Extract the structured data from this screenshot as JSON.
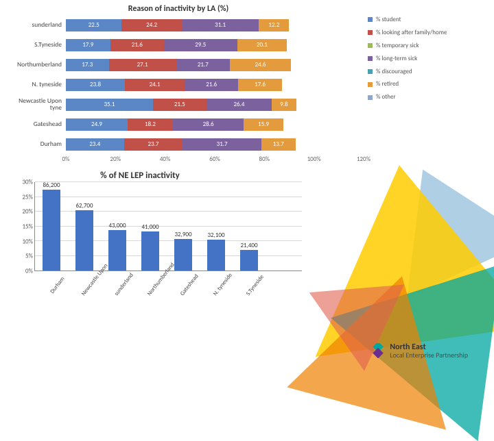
{
  "top_chart": {
    "type": "stacked-bar-horizontal",
    "title": "Reason of inactivity by LA (%)",
    "title_fontsize": 12,
    "label_fontsize": 9.5,
    "value_fontsize": 9,
    "background_color": "#ffffff",
    "xlim": [
      0,
      120
    ],
    "xtick_step": 20,
    "xticks": [
      "0%",
      "20%",
      "40%",
      "60%",
      "80%",
      "100%",
      "120%"
    ],
    "series": [
      {
        "label": "% student",
        "color": "#5b87c7"
      },
      {
        "label": "% looking after family/home",
        "color": "#c05048"
      },
      {
        "label": "% temporary sick",
        "color": "#9bbb59"
      },
      {
        "label": "% long-term sick",
        "color": "#7b629e"
      },
      {
        "label": "% discouraged",
        "color": "#46a0b8"
      },
      {
        "label": "% retired",
        "color": "#e39b3e"
      },
      {
        "label": "% other",
        "color": "#8fa7cf"
      }
    ],
    "categories": [
      "sunderland",
      "S.Tyneside",
      "Northumberland",
      "N. tyneside",
      "Newcastle Upon tyne",
      "Gateshead",
      "Durham"
    ],
    "rows": [
      {
        "label": "sunderland",
        "segments": [
          {
            "v": 22.5,
            "text": "22.5"
          },
          {
            "v": 24.2,
            "text": "24.2"
          },
          {
            "v": 31.1,
            "text": "31.1"
          },
          {
            "v": 12.2,
            "text": "12.2"
          }
        ]
      },
      {
        "label": "S.Tyneside",
        "segments": [
          {
            "v": 17.9,
            "text": "17.9"
          },
          {
            "v": 21.6,
            "text": "21.6"
          },
          {
            "v": 29.5,
            "text": "29.5"
          },
          {
            "v": 20.1,
            "text": "20.1"
          }
        ]
      },
      {
        "label": "Northumberland",
        "segments": [
          {
            "v": 17.3,
            "text": "17.3"
          },
          {
            "v": 27.1,
            "text": "27.1"
          },
          {
            "v": 21.7,
            "text": "21.7"
          },
          {
            "v": 24.6,
            "text": "24.6"
          }
        ]
      },
      {
        "label": "N. tyneside",
        "segments": [
          {
            "v": 23.8,
            "text": "23.8"
          },
          {
            "v": 24.1,
            "text": "24.1"
          },
          {
            "v": 21.6,
            "text": "21.6"
          },
          {
            "v": 17.6,
            "text": "17.6"
          }
        ]
      },
      {
        "label": "Newcastle Upon tyne",
        "segments": [
          {
            "v": 35.1,
            "text": "35.1"
          },
          {
            "v": 21.5,
            "text": "21.5"
          },
          {
            "v": 26.4,
            "text": "26.4"
          },
          {
            "v": 9.8,
            "text": "9.8"
          }
        ]
      },
      {
        "label": "Gateshead",
        "segments": [
          {
            "v": 24.9,
            "text": "24.9"
          },
          {
            "v": 18.2,
            "text": "18.2"
          },
          {
            "v": 28.6,
            "text": "28.6"
          },
          {
            "v": 15.9,
            "text": "15.9"
          }
        ]
      },
      {
        "label": "Durham",
        "segments": [
          {
            "v": 23.4,
            "text": "23.4"
          },
          {
            "v": 23.7,
            "text": "23.7"
          },
          {
            "v": 31.7,
            "text": "31.7"
          },
          {
            "v": 13.7,
            "text": "13.7"
          }
        ]
      }
    ],
    "segment_colors": [
      "#5b87c7",
      "#c05048",
      "#7b629e",
      "#e39b3e"
    ]
  },
  "bottom_chart": {
    "type": "bar",
    "title": "% of NE LEP inactivity",
    "title_fontsize": 13,
    "bar_color": "#4472c4",
    "value_fontsize": 9,
    "label_fontsize": 8.5,
    "ylim": [
      0,
      30
    ],
    "ytick_step": 5,
    "yticks": [
      "0%",
      "5%",
      "10%",
      "15%",
      "20%",
      "25%",
      "30%"
    ],
    "grid_color": "#d8d8d8",
    "bars": [
      {
        "label": "Durham",
        "value": 28,
        "text": "86,200"
      },
      {
        "label": "Newcastle Upon …",
        "value": 21,
        "text": "62,700"
      },
      {
        "label": "sunderland",
        "value": 14,
        "text": "43,000"
      },
      {
        "label": "Northumberland",
        "value": 13.5,
        "text": "41,000"
      },
      {
        "label": "Gateshead",
        "value": 11,
        "text": "32,900"
      },
      {
        "label": "N. tyneside",
        "value": 10.6,
        "text": "32,100"
      },
      {
        "label": "S.Tyneside",
        "value": 7.2,
        "text": "21,400"
      }
    ]
  },
  "logo": {
    "main": "North East",
    "sub": "Local Enterprise Partnership",
    "icon_color_1": "#00a7a0",
    "icon_color_2": "#6c2c8f"
  }
}
